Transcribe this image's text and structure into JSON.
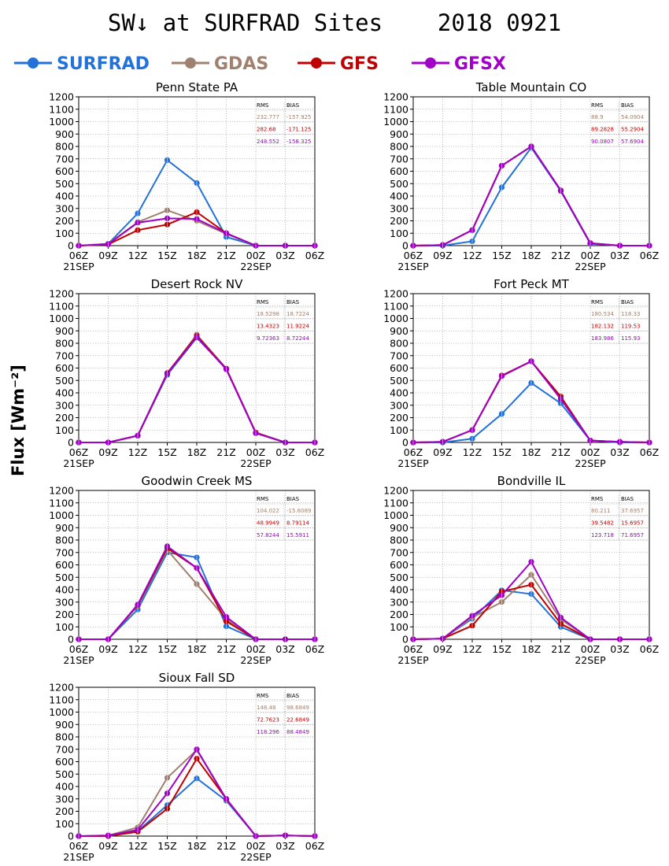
{
  "title": "SW↓ at SURFRAD Sites    2018 0921",
  "ylabel": "Flux [Wm⁻²]",
  "series_legend": [
    {
      "name": "SURFRAD",
      "color": "#2272d9"
    },
    {
      "name": "GDAS",
      "color": "#a0806e"
    },
    {
      "name": "GFS",
      "color": "#c00000"
    },
    {
      "name": "GFSX",
      "color": "#a000c8"
    }
  ],
  "stats_headers": [
    "RMS",
    "BIAS"
  ],
  "chart_data": [
    {
      "type": "line",
      "title": "Penn State PA",
      "x": [
        "06Z",
        "09Z",
        "12Z",
        "15Z",
        "18Z",
        "21Z",
        "00Z",
        "03Z",
        "06Z"
      ],
      "date_labels": [
        "21SEP",
        "22SEP"
      ],
      "ylim": [
        0,
        1200
      ],
      "yticks": [
        0,
        100,
        200,
        300,
        400,
        500,
        600,
        700,
        800,
        900,
        1000,
        1100,
        1200
      ],
      "grid": true,
      "series": [
        {
          "name": "SURFRAD",
          "color": "#2272d9",
          "values": [
            0,
            15,
            260,
            690,
            505,
            70,
            0,
            0,
            0
          ]
        },
        {
          "name": "GDAS",
          "color": "#a0806e",
          "values": [
            0,
            15,
            190,
            285,
            200,
            95,
            0,
            0,
            0
          ]
        },
        {
          "name": "GFS",
          "color": "#c00000",
          "values": [
            0,
            10,
            125,
            170,
            270,
            100,
            0,
            0,
            0
          ]
        },
        {
          "name": "GFSX",
          "color": "#a000c8",
          "values": [
            0,
            12,
            185,
            220,
            215,
            100,
            0,
            0,
            0
          ]
        }
      ],
      "stats": [
        [
          "232.777",
          "-157.925"
        ],
        [
          "282.68",
          "-171.125"
        ],
        [
          "248.552",
          "-158.325"
        ]
      ]
    },
    {
      "type": "line",
      "title": "Table Mountain CO",
      "x": [
        "06Z",
        "09Z",
        "12Z",
        "15Z",
        "18Z",
        "21Z",
        "00Z",
        "03Z",
        "06Z"
      ],
      "date_labels": [
        "21SEP",
        "22SEP"
      ],
      "ylim": [
        0,
        1200
      ],
      "yticks": [
        0,
        100,
        200,
        300,
        400,
        500,
        600,
        700,
        800,
        900,
        1000,
        1100,
        1200
      ],
      "grid": true,
      "series": [
        {
          "name": "SURFRAD",
          "color": "#2272d9",
          "values": [
            0,
            0,
            35,
            470,
            790,
            440,
            15,
            0,
            0
          ]
        },
        {
          "name": "GDAS",
          "color": "#a0806e",
          "values": [
            0,
            5,
            125,
            645,
            800,
            445,
            20,
            0,
            0
          ]
        },
        {
          "name": "GFS",
          "color": "#c00000",
          "values": [
            0,
            5,
            125,
            645,
            800,
            445,
            20,
            0,
            0
          ]
        },
        {
          "name": "GFSX",
          "color": "#a000c8",
          "values": [
            0,
            5,
            125,
            645,
            800,
            445,
            20,
            0,
            0
          ]
        }
      ],
      "stats": [
        [
          "88.9",
          "54.0904"
        ],
        [
          "89.2828",
          "55.2904"
        ],
        [
          "90.0807",
          "57.6904"
        ]
      ]
    },
    {
      "type": "line",
      "title": "Desert Rock NV",
      "x": [
        "06Z",
        "09Z",
        "12Z",
        "15Z",
        "18Z",
        "21Z",
        "00Z",
        "03Z",
        "06Z"
      ],
      "date_labels": [
        "21SEP",
        "22SEP"
      ],
      "ylim": [
        0,
        1200
      ],
      "yticks": [
        0,
        100,
        200,
        300,
        400,
        500,
        600,
        700,
        800,
        900,
        1000,
        1100,
        1200
      ],
      "grid": true,
      "series": [
        {
          "name": "SURFRAD",
          "color": "#2272d9",
          "values": [
            0,
            0,
            55,
            545,
            845,
            595,
            75,
            0,
            0
          ]
        },
        {
          "name": "GDAS",
          "color": "#a0806e",
          "values": [
            0,
            0,
            55,
            555,
            870,
            595,
            75,
            0,
            0
          ]
        },
        {
          "name": "GFS",
          "color": "#c00000",
          "values": [
            0,
            0,
            55,
            560,
            860,
            595,
            80,
            0,
            0
          ]
        },
        {
          "name": "GFSX",
          "color": "#a000c8",
          "values": [
            0,
            0,
            55,
            555,
            850,
            590,
            75,
            0,
            0
          ]
        }
      ],
      "stats": [
        [
          "18.5298",
          "18.7224"
        ],
        [
          "13.4323",
          "11.9224"
        ],
        [
          "9.72363",
          "8.72244"
        ]
      ]
    },
    {
      "type": "line",
      "title": "Fort Peck MT",
      "x": [
        "06Z",
        "09Z",
        "12Z",
        "15Z",
        "18Z",
        "21Z",
        "00Z",
        "03Z",
        "06Z"
      ],
      "date_labels": [
        "21SEP",
        "22SEP"
      ],
      "ylim": [
        0,
        1200
      ],
      "yticks": [
        0,
        100,
        200,
        300,
        400,
        500,
        600,
        700,
        800,
        900,
        1000,
        1100,
        1200
      ],
      "grid": true,
      "series": [
        {
          "name": "SURFRAD",
          "color": "#2272d9",
          "values": [
            0,
            0,
            30,
            230,
            480,
            315,
            15,
            0,
            0
          ]
        },
        {
          "name": "GDAS",
          "color": "#a0806e",
          "values": [
            0,
            5,
            100,
            535,
            655,
            355,
            15,
            5,
            0
          ]
        },
        {
          "name": "GFS",
          "color": "#c00000",
          "values": [
            0,
            5,
            100,
            540,
            655,
            370,
            15,
            5,
            0
          ]
        },
        {
          "name": "GFSX",
          "color": "#a000c8",
          "values": [
            0,
            5,
            100,
            535,
            655,
            350,
            15,
            5,
            0
          ]
        }
      ],
      "stats": [
        [
          "180.534",
          "118.33"
        ],
        [
          "182.132",
          "119.53"
        ],
        [
          "183.986",
          "115.93"
        ]
      ]
    },
    {
      "type": "line",
      "title": "Goodwin Creek MS",
      "x": [
        "06Z",
        "09Z",
        "12Z",
        "15Z",
        "18Z",
        "21Z",
        "00Z",
        "03Z",
        "06Z"
      ],
      "date_labels": [
        "21SEP",
        "22SEP"
      ],
      "ylim": [
        0,
        1200
      ],
      "yticks": [
        0,
        100,
        200,
        300,
        400,
        500,
        600,
        700,
        800,
        900,
        1000,
        1100,
        1200
      ],
      "grid": true,
      "series": [
        {
          "name": "SURFRAD",
          "color": "#2272d9",
          "values": [
            0,
            0,
            240,
            700,
            660,
            105,
            0,
            0,
            0
          ]
        },
        {
          "name": "GDAS",
          "color": "#a0806e",
          "values": [
            0,
            0,
            270,
            720,
            445,
            160,
            0,
            0,
            0
          ]
        },
        {
          "name": "GFS",
          "color": "#c00000",
          "values": [
            0,
            0,
            275,
            735,
            575,
            145,
            0,
            0,
            0
          ]
        },
        {
          "name": "GFSX",
          "color": "#a000c8",
          "values": [
            0,
            0,
            280,
            750,
            575,
            180,
            0,
            0,
            0
          ]
        }
      ],
      "stats": [
        [
          "104.022",
          "-15.8089"
        ],
        [
          "48.9949",
          "8.79114"
        ],
        [
          "57.8244",
          "15.5911"
        ]
      ]
    },
    {
      "type": "line",
      "title": "Bondville IL",
      "x": [
        "06Z",
        "09Z",
        "12Z",
        "15Z",
        "18Z",
        "21Z",
        "00Z",
        "03Z",
        "06Z"
      ],
      "date_labels": [
        "21SEP",
        "22SEP"
      ],
      "ylim": [
        0,
        1200
      ],
      "yticks": [
        0,
        100,
        200,
        300,
        400,
        500,
        600,
        700,
        800,
        900,
        1000,
        1100,
        1200
      ],
      "grid": true,
      "series": [
        {
          "name": "SURFRAD",
          "color": "#2272d9",
          "values": [
            0,
            5,
            165,
            395,
            365,
            100,
            0,
            0,
            0
          ]
        },
        {
          "name": "GDAS",
          "color": "#a0806e",
          "values": [
            0,
            5,
            175,
            300,
            520,
            160,
            0,
            0,
            0
          ]
        },
        {
          "name": "GFS",
          "color": "#c00000",
          "values": [
            0,
            5,
            110,
            385,
            440,
            125,
            0,
            0,
            0
          ]
        },
        {
          "name": "GFSX",
          "color": "#a000c8",
          "values": [
            0,
            5,
            190,
            355,
            625,
            175,
            0,
            0,
            0
          ]
        }
      ],
      "stats": [
        [
          "80.211",
          "37.6957"
        ],
        [
          "39.5482",
          "15.6957"
        ],
        [
          "123.718",
          "71.6957"
        ]
      ]
    },
    {
      "type": "line",
      "title": "Sioux Fall SD",
      "x": [
        "06Z",
        "09Z",
        "12Z",
        "15Z",
        "18Z",
        "21Z",
        "00Z",
        "03Z",
        "06Z"
      ],
      "date_labels": [
        "21SEP",
        "22SEP"
      ],
      "ylim": [
        0,
        1200
      ],
      "yticks": [
        0,
        100,
        200,
        300,
        400,
        500,
        600,
        700,
        800,
        900,
        1000,
        1100,
        1200
      ],
      "grid": true,
      "series": [
        {
          "name": "SURFRAD",
          "color": "#2272d9",
          "values": [
            0,
            0,
            40,
            250,
            465,
            285,
            0,
            5,
            0
          ]
        },
        {
          "name": "GDAS",
          "color": "#a0806e",
          "values": [
            0,
            5,
            70,
            470,
            695,
            295,
            0,
            5,
            0
          ]
        },
        {
          "name": "GFS",
          "color": "#c00000",
          "values": [
            0,
            0,
            35,
            220,
            625,
            300,
            0,
            5,
            0
          ]
        },
        {
          "name": "GFSX",
          "color": "#a000c8",
          "values": [
            0,
            5,
            50,
            345,
            700,
            300,
            0,
            5,
            0
          ]
        }
      ],
      "stats": [
        [
          "148.48",
          "98.6849"
        ],
        [
          "72.7623",
          "22.6849"
        ],
        [
          "118.296",
          "88.4849"
        ]
      ]
    }
  ]
}
